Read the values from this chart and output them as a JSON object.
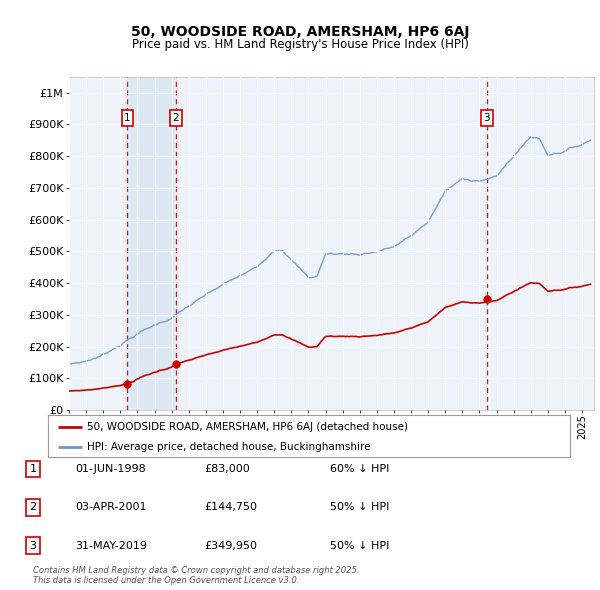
{
  "title": "50, WOODSIDE ROAD, AMERSHAM, HP6 6AJ",
  "subtitle": "Price paid vs. HM Land Registry's House Price Index (HPI)",
  "background_color": "#ffffff",
  "plot_bg_color": "#eef2fa",
  "grid_color": "#ffffff",
  "shade_color": "#dde8f5",
  "ylim": [
    0,
    1050000
  ],
  "yticks": [
    0,
    100000,
    200000,
    300000,
    400000,
    500000,
    600000,
    700000,
    800000,
    900000,
    1000000
  ],
  "ytick_labels": [
    "£0",
    "£100K",
    "£200K",
    "£300K",
    "£400K",
    "£500K",
    "£600K",
    "£700K",
    "£800K",
    "£900K",
    "£1M"
  ],
  "year_start": 1995,
  "year_end": 2025.5,
  "sales": [
    {
      "year": 1998.42,
      "price": 83000,
      "label": "1"
    },
    {
      "year": 2001.25,
      "price": 144750,
      "label": "2"
    },
    {
      "year": 2019.42,
      "price": 349950,
      "label": "3"
    }
  ],
  "sale_line_color": "#cc0000",
  "hpi_line_color": "#6699cc",
  "legend_sale_label": "50, WOODSIDE ROAD, AMERSHAM, HP6 6AJ (detached house)",
  "legend_hpi_label": "HPI: Average price, detached house, Buckinghamshire",
  "table_entries": [
    {
      "num": "1",
      "date": "01-JUN-1998",
      "price": "£83,000",
      "note": "60% ↓ HPI"
    },
    {
      "num": "2",
      "date": "03-APR-2001",
      "price": "£144,750",
      "note": "50% ↓ HPI"
    },
    {
      "num": "3",
      "date": "31-MAY-2019",
      "price": "£349,950",
      "note": "50% ↓ HPI"
    }
  ],
  "footer": "Contains HM Land Registry data © Crown copyright and database right 2025.\nThis data is licensed under the Open Government Licence v3.0."
}
